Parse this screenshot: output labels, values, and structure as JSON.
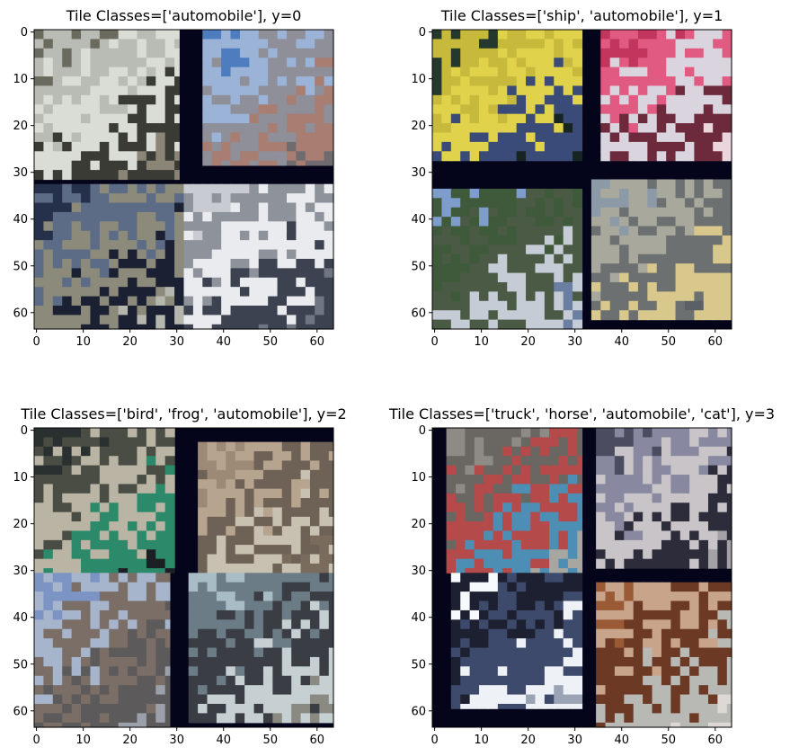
{
  "figure": {
    "panels": [
      {
        "id": "panel-0",
        "title": "Tile Classes=['automobile'], y=0",
        "x_ticks": [
          "0",
          "10",
          "20",
          "30",
          "40",
          "50",
          "60"
        ],
        "y_ticks": [
          "0",
          "10",
          "20",
          "30",
          "40",
          "50",
          "60"
        ],
        "tiles": [
          {
            "class": "automobile",
            "x0": 0,
            "y0": 0,
            "x1": 31,
            "y1": 32,
            "colors": [
              "#6b6a5e",
              "#b8bcb4",
              "#d9ddd6",
              "#3a3b34",
              "#8a8576"
            ]
          },
          {
            "class": "automobile",
            "x0": 36,
            "y0": 0,
            "x1": 64,
            "y1": 29,
            "colors": [
              "#4d7cbf",
              "#9ab3d6",
              "#8e8f98",
              "#a87d72",
              "#6f6b6e"
            ]
          },
          {
            "class": "automobile",
            "x0": 0,
            "y0": 33,
            "x1": 32,
            "y1": 64,
            "colors": [
              "#25304a",
              "#5c6c86",
              "#8c8a7a",
              "#1c2033",
              "#b5b7ae"
            ]
          },
          {
            "class": "automobile",
            "x0": 32,
            "y0": 33,
            "x1": 64,
            "y1": 64,
            "colors": [
              "#c8ccd2",
              "#8d929b",
              "#e9ebee",
              "#3d4250",
              "#6f7581"
            ]
          }
        ]
      },
      {
        "id": "panel-1",
        "title": "Tile Classes=['ship', 'automobile'], y=1",
        "x_ticks": [
          "0",
          "10",
          "20",
          "30",
          "40",
          "50",
          "60"
        ],
        "y_ticks": [
          "0",
          "10",
          "20",
          "30",
          "40",
          "50",
          "60"
        ],
        "tiles": [
          {
            "class": "automobile",
            "x0": 0,
            "y0": 0,
            "x1": 32,
            "y1": 28,
            "colors": [
              "#24382e",
              "#c6b93c",
              "#e0d24a",
              "#3a4b78",
              "#182422"
            ]
          },
          {
            "class": "automobile",
            "x0": 36,
            "y0": 0,
            "x1": 64,
            "y1": 28,
            "colors": [
              "#c2365e",
              "#e05a82",
              "#d9d4de",
              "#6d2a3c",
              "#ead6dc"
            ]
          },
          {
            "class": "ship",
            "x0": 0,
            "y0": 34,
            "x1": 32,
            "y1": 64,
            "colors": [
              "#7e9ccc",
              "#3e5a3a",
              "#4a5a44",
              "#c6ccd6",
              "#6a7fa2"
            ]
          },
          {
            "class": "ship",
            "x0": 34,
            "y0": 32,
            "x1": 64,
            "y1": 62,
            "colors": [
              "#8c99a6",
              "#a8a89c",
              "#6c7070",
              "#d8c88c",
              "#5a6066"
            ]
          }
        ]
      },
      {
        "id": "panel-2",
        "title": "Tile Classes=['bird', 'frog', 'automobile'], y=2",
        "x_ticks": [
          "0",
          "10",
          "20",
          "30",
          "40",
          "50",
          "60"
        ],
        "y_ticks": [
          "0",
          "10",
          "20",
          "30",
          "40",
          "50",
          "60"
        ],
        "tiles": [
          {
            "class": "bird",
            "x0": 0,
            "y0": 0,
            "x1": 30,
            "y1": 31,
            "colors": [
              "#2a3030",
              "#4a4d44",
              "#b9b4a4",
              "#2c8a6a",
              "#1c2024"
            ]
          },
          {
            "class": "frog",
            "x0": 35,
            "y0": 3,
            "x1": 64,
            "y1": 31,
            "colors": [
              "#9c8a76",
              "#b6a48e",
              "#6e6256",
              "#c8c0b0",
              "#7a6c5c"
            ]
          },
          {
            "class": "bird",
            "x0": 0,
            "y0": 31,
            "x1": 29,
            "y1": 64,
            "colors": [
              "#7c94c4",
              "#a6b4cc",
              "#7a6e66",
              "#5c5a5a",
              "#9ca0aa"
            ]
          },
          {
            "class": "automobile",
            "x0": 33,
            "y0": 31,
            "x1": 64,
            "y1": 63,
            "colors": [
              "#a8bcc6",
              "#6c7c86",
              "#3a3e44",
              "#c6cfd2",
              "#8a8a82"
            ]
          }
        ]
      },
      {
        "id": "panel-3",
        "title": "Tile Classes=['truck', 'horse', 'automobile', 'cat'], y=3",
        "x_ticks": [
          "0",
          "10",
          "20",
          "30",
          "40",
          "50",
          "60"
        ],
        "y_ticks": [
          "0",
          "10",
          "20",
          "30",
          "40",
          "50",
          "60"
        ],
        "tiles": [
          {
            "class": "cat",
            "x0": 3,
            "y0": 0,
            "x1": 32,
            "y1": 31,
            "colors": [
              "#8e8a86",
              "#6a6662",
              "#b44a4a",
              "#4c8eb4",
              "#a8a6a0"
            ]
          },
          {
            "class": "truck",
            "x0": 35,
            "y0": 0,
            "x1": 64,
            "y1": 30,
            "colors": [
              "#4c4c60",
              "#8888a0",
              "#c8c4c8",
              "#2c2c3a",
              "#a4a2a6"
            ]
          },
          {
            "class": "automobile",
            "x0": 4,
            "y0": 31,
            "x1": 32,
            "y1": 60,
            "colors": [
              "#f6fafc",
              "#1c2030",
              "#3e4a6c",
              "#eef2f6",
              "#9aa4b4"
            ]
          },
          {
            "class": "horse",
            "x0": 35,
            "y0": 33,
            "x1": 64,
            "y1": 64,
            "colors": [
              "#9a5a36",
              "#c8a48a",
              "#6c3a24",
              "#b8b8b4",
              "#ddd8d4"
            ]
          }
        ]
      }
    ]
  }
}
